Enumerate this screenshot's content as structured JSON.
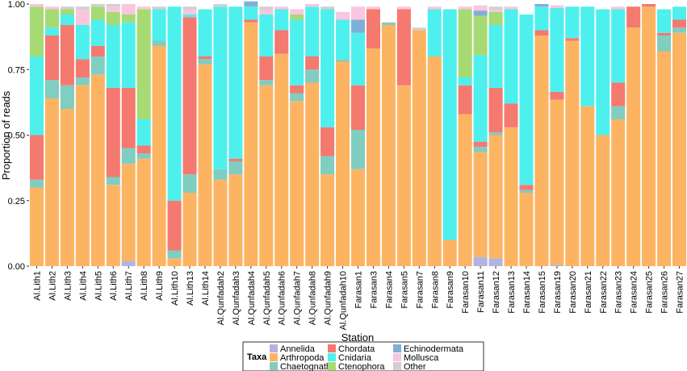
{
  "chart_data": {
    "type": "bar",
    "stacked": true,
    "title": "",
    "xlabel": "Station",
    "ylabel": "Proportion of reads",
    "ylim": [
      0,
      1
    ],
    "yticks": [
      "0.00",
      "0.25",
      "0.50",
      "0.75",
      "1.00"
    ],
    "legend_title": "Taxa",
    "legend_position": "bottom",
    "categories": [
      "Al.Lith1",
      "Al.Lith2",
      "Al.Lith3",
      "Al.Lith4",
      "Al.Lith5",
      "Al.Lith6",
      "Al.Lith7",
      "Al.Lith8",
      "Al.Lith9",
      "Al.Lith10",
      "Al.Lith13",
      "Al.Lith14",
      "Al.Qunfadah2",
      "Al.Qunfadah3",
      "Al.Qunfadah4",
      "Al.Qunfadah5",
      "Al.Qunfadah6",
      "Al.Qunfadah7",
      "Al.Qunfadah8",
      "Al.Qunfadah9",
      "Al.Qunfadah10",
      "Farasan1",
      "Farasan3",
      "Farasan4",
      "Farasan5",
      "Farasan7",
      "Farasan8",
      "Farasan9",
      "Farasan10",
      "Farasan11",
      "Farasan12",
      "Farasan13",
      "Farasan14",
      "Farasan15",
      "Farasan19",
      "Farasan20",
      "Farasan21",
      "Farasan22",
      "Farasan23",
      "Farasan24",
      "Farasan25",
      "Farasan26",
      "Farasan27"
    ],
    "series": [
      {
        "name": "Annelida",
        "color": "#b3b3e0",
        "values": [
          0,
          0,
          0,
          0,
          0,
          0,
          0.02,
          0,
          0,
          0,
          0,
          0,
          0,
          0,
          0,
          0,
          0,
          0,
          0,
          0,
          0,
          0,
          0,
          0,
          0,
          0,
          0,
          0,
          0,
          0.035,
          0.03,
          0,
          0,
          0,
          0.005,
          0,
          0,
          0,
          0,
          0,
          0,
          0,
          0
        ]
      },
      {
        "name": "Arthropoda",
        "color": "#fdb462",
        "values": [
          0.3,
          0.64,
          0.6,
          0.69,
          0.73,
          0.31,
          0.37,
          0.41,
          0.84,
          0.03,
          0.28,
          0.77,
          0.33,
          0.35,
          0.93,
          0.69,
          0.81,
          0.63,
          0.7,
          0.35,
          0.78,
          0.37,
          0.83,
          0.92,
          0.69,
          0.9,
          0.8,
          0.1,
          0.58,
          0.4,
          0.47,
          0.53,
          0.28,
          0.88,
          0.63,
          0.86,
          0.61,
          0.5,
          0.56,
          0.91,
          0.99,
          0.82,
          0.89
        ]
      },
      {
        "name": "Chaetognatha",
        "color": "#80cdc1",
        "values": [
          0.03,
          0.07,
          0.09,
          0.03,
          0.07,
          0.03,
          0.06,
          0.02,
          0.02,
          0.03,
          0.07,
          0.02,
          0.04,
          0.05,
          0,
          0.02,
          0,
          0.03,
          0.05,
          0.07,
          0.01,
          0.15,
          0,
          0.01,
          0,
          0,
          0,
          0,
          0,
          0.02,
          0.01,
          0,
          0.01,
          0,
          0,
          0,
          0,
          0,
          0.05,
          0,
          0,
          0.06,
          0.02
        ]
      },
      {
        "name": "Chordata",
        "color": "#f4796f",
        "values": [
          0.17,
          0.17,
          0.23,
          0.07,
          0.04,
          0.34,
          0.23,
          0.03,
          0,
          0.19,
          0.6,
          0.01,
          0,
          0.01,
          0.01,
          0.09,
          0.09,
          0.03,
          0.05,
          0.11,
          0,
          0.17,
          0.15,
          0,
          0.29,
          0,
          0,
          0,
          0.11,
          0.02,
          0.17,
          0.09,
          0.02,
          0.02,
          0.03,
          0.01,
          0,
          0,
          0.09,
          0.08,
          0.01,
          0.01,
          0.03
        ]
      },
      {
        "name": "Cnidaria",
        "color": "#4ef0ee",
        "values": [
          0.3,
          0.03,
          0.04,
          0.13,
          0.1,
          0.24,
          0.25,
          0.1,
          0.12,
          0.74,
          0.01,
          0.18,
          0.62,
          0.58,
          0.05,
          0.16,
          0.08,
          0.25,
          0.19,
          0.45,
          0.15,
          0.2,
          0,
          0,
          0,
          0,
          0.18,
          0.88,
          0.03,
          0.33,
          0.24,
          0.36,
          0.65,
          0.09,
          0.32,
          0.12,
          0.38,
          0.48,
          0.28,
          0,
          0,
          0.09,
          0.05
        ]
      },
      {
        "name": "Ctenophora",
        "color": "#a6db73",
        "values": [
          0.19,
          0.07,
          0.02,
          0,
          0.05,
          0.05,
          0.03,
          0.42,
          0,
          0,
          0,
          0,
          0,
          0,
          0,
          0,
          0,
          0.02,
          0,
          0,
          0,
          0,
          0,
          0,
          0,
          0,
          0,
          0,
          0.26,
          0.15,
          0.05,
          0,
          0,
          0,
          0,
          0,
          0,
          0,
          0,
          0,
          0,
          0,
          0
        ]
      },
      {
        "name": "Echinodermata",
        "color": "#7fb0d6",
        "values": [
          0,
          0,
          0,
          0,
          0,
          0,
          0,
          0,
          0,
          0,
          0,
          0,
          0,
          0,
          0.02,
          0,
          0,
          0,
          0,
          0,
          0,
          0.05,
          0,
          0,
          0,
          0,
          0,
          0,
          0,
          0.02,
          0,
          0,
          0,
          0.01,
          0,
          0,
          0,
          0,
          0,
          0,
          0,
          0,
          0
        ]
      },
      {
        "name": "Mollusca",
        "color": "#f9c6df",
        "values": [
          0.01,
          0.01,
          0,
          0.06,
          0,
          0.02,
          0.04,
          0.01,
          0,
          0,
          0.02,
          0,
          0,
          0,
          0,
          0.02,
          0.01,
          0.02,
          0.01,
          0,
          0.03,
          0.05,
          0.01,
          0,
          0.01,
          0,
          0.01,
          0,
          0.01,
          0.02,
          0.01,
          0.01,
          0,
          0,
          0.01,
          0,
          0,
          0,
          0.01,
          0,
          0,
          0,
          0
        ]
      },
      {
        "name": "Other",
        "color": "#d0d0d0",
        "values": [
          0,
          0,
          0.01,
          0.01,
          0.01,
          0.01,
          0,
          0,
          0.01,
          0,
          0.01,
          0,
          0.01,
          0,
          0,
          0.01,
          0,
          0,
          0,
          0.01,
          0,
          0,
          0,
          0,
          0,
          0.01,
          0,
          0,
          0,
          0,
          0.01,
          0,
          0,
          0,
          0,
          0,
          0,
          0,
          0,
          0,
          0,
          0,
          0
        ]
      }
    ]
  }
}
